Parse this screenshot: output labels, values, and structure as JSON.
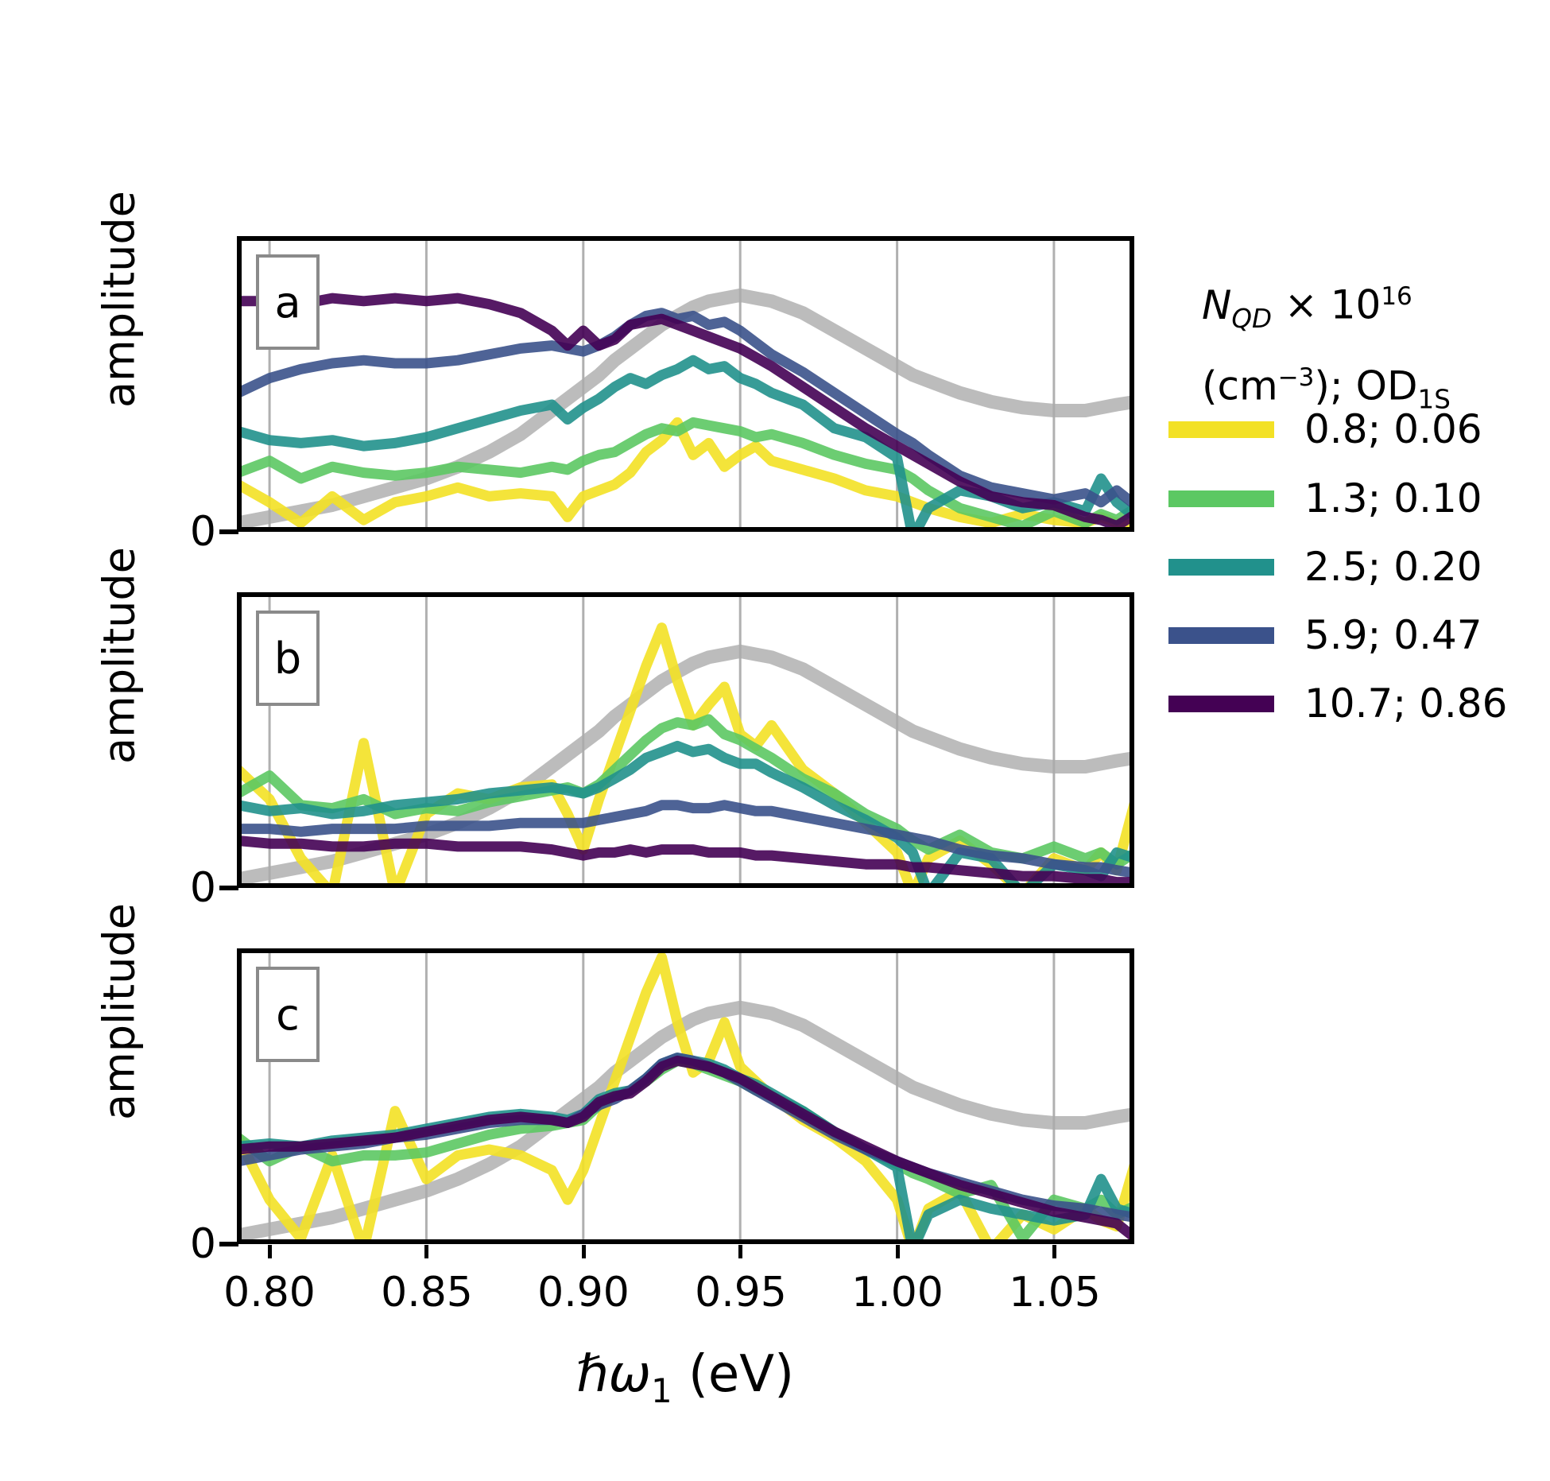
{
  "figure": {
    "ylabel": "amplitude",
    "zero_label": "0",
    "xlabel_html": "<i>&#8463;&#969;</i><sub>1</sub> (eV)",
    "panel_labels": [
      "a",
      "b",
      "c"
    ]
  },
  "legend": {
    "title_line1_html": "<i>N<sub>QD</sub></i> &#215; 10<sup>16</sup>",
    "title_line2_html": "(cm<sup>&#8722;3</sup>); OD<sub>1S</sub>",
    "entries": [
      {
        "label": "0.8; 0.06",
        "color": "#F3E125"
      },
      {
        "label": "1.3; 0.10",
        "color": "#5CC863"
      },
      {
        "label": "2.5; 0.20",
        "color": "#21918C"
      },
      {
        "label": "5.9; 0.47",
        "color": "#3B528B"
      },
      {
        "label": "10.7; 0.86",
        "color": "#440154"
      }
    ]
  },
  "chart_data": {
    "type": "line",
    "title": "",
    "xlabel": "ℏω₁ (eV)",
    "ylabel": "amplitude",
    "xlim": [
      0.7896,
      1.0756
    ],
    "ylim": [
      0,
      1
    ],
    "grid": true,
    "grid_color": "#B0B0B0",
    "legend_position": "right",
    "x_tick_values": [
      0.8,
      0.85,
      0.9,
      0.95,
      1.0,
      1.05
    ],
    "x_tick_labels": [
      "0.80",
      "0.85",
      "0.90",
      "0.95",
      "1.00",
      "1.05"
    ],
    "y_tick_labels": [
      "0"
    ],
    "x": [
      0.79,
      0.8,
      0.81,
      0.82,
      0.83,
      0.84,
      0.85,
      0.86,
      0.87,
      0.88,
      0.89,
      0.895,
      0.9,
      0.905,
      0.91,
      0.915,
      0.92,
      0.925,
      0.93,
      0.935,
      0.94,
      0.945,
      0.95,
      0.955,
      0.96,
      0.97,
      0.98,
      0.99,
      1.0,
      1.005,
      1.01,
      1.02,
      1.03,
      1.04,
      1.05,
      1.06,
      1.065,
      1.07,
      1.076
    ],
    "reference": {
      "name": "linear absorption reference",
      "color": "#ABABAB",
      "y": [
        0.03,
        0.05,
        0.07,
        0.09,
        0.12,
        0.15,
        0.18,
        0.22,
        0.27,
        0.33,
        0.41,
        0.45,
        0.49,
        0.53,
        0.58,
        0.62,
        0.66,
        0.7,
        0.73,
        0.76,
        0.78,
        0.79,
        0.8,
        0.79,
        0.78,
        0.74,
        0.68,
        0.62,
        0.56,
        0.53,
        0.51,
        0.47,
        0.44,
        0.42,
        0.41,
        0.41,
        0.42,
        0.43,
        0.44
      ]
    },
    "panels": [
      {
        "label": "a",
        "series": [
          {
            "name": "0.8; 0.06",
            "color": "#F3E125",
            "y": [
              0.16,
              0.1,
              0.03,
              0.12,
              0.04,
              0.1,
              0.12,
              0.15,
              0.12,
              0.13,
              0.12,
              0.05,
              0.12,
              0.14,
              0.16,
              0.2,
              0.27,
              0.31,
              0.37,
              0.26,
              0.3,
              0.22,
              0.26,
              0.29,
              0.24,
              0.21,
              0.18,
              0.14,
              0.12,
              0.1,
              0.08,
              0.05,
              0.03,
              0.06,
              0.04,
              0.03,
              0.05,
              0.03,
              0.02
            ]
          },
          {
            "name": "1.3; 0.10",
            "color": "#5CC863",
            "y": [
              0.2,
              0.24,
              0.18,
              0.22,
              0.2,
              0.19,
              0.2,
              0.22,
              0.21,
              0.2,
              0.22,
              0.21,
              0.24,
              0.26,
              0.27,
              0.3,
              0.33,
              0.35,
              0.34,
              0.37,
              0.36,
              0.35,
              0.34,
              0.32,
              0.33,
              0.3,
              0.26,
              0.23,
              0.21,
              0.18,
              0.14,
              0.08,
              0.05,
              0.02,
              0.07,
              0.03,
              0.06,
              0.04,
              0.08
            ]
          },
          {
            "name": "2.5; 0.20",
            "color": "#21918C",
            "y": [
              0.34,
              0.31,
              0.3,
              0.31,
              0.29,
              0.3,
              0.32,
              0.35,
              0.38,
              0.41,
              0.43,
              0.38,
              0.42,
              0.45,
              0.49,
              0.52,
              0.5,
              0.53,
              0.55,
              0.58,
              0.55,
              0.56,
              0.52,
              0.5,
              0.47,
              0.43,
              0.35,
              0.32,
              0.25,
              -0.02,
              0.08,
              0.14,
              0.12,
              0.08,
              0.1,
              0.07,
              0.18,
              0.1,
              0.05
            ]
          },
          {
            "name": "5.9; 0.47",
            "color": "#3B528B",
            "y": [
              0.47,
              0.52,
              0.55,
              0.57,
              0.58,
              0.57,
              0.57,
              0.58,
              0.6,
              0.62,
              0.63,
              0.62,
              0.61,
              0.63,
              0.66,
              0.7,
              0.73,
              0.74,
              0.72,
              0.73,
              0.7,
              0.71,
              0.68,
              0.64,
              0.6,
              0.54,
              0.47,
              0.4,
              0.33,
              0.3,
              0.26,
              0.19,
              0.15,
              0.13,
              0.11,
              0.13,
              0.1,
              0.14,
              0.09
            ]
          },
          {
            "name": "10.7; 0.86",
            "color": "#440154",
            "y": [
              0.78,
              0.78,
              0.77,
              0.79,
              0.78,
              0.79,
              0.78,
              0.79,
              0.77,
              0.74,
              0.68,
              0.63,
              0.68,
              0.63,
              0.65,
              0.7,
              0.71,
              0.72,
              0.7,
              0.68,
              0.66,
              0.64,
              0.62,
              0.59,
              0.56,
              0.49,
              0.42,
              0.35,
              0.29,
              0.26,
              0.23,
              0.17,
              0.12,
              0.1,
              0.09,
              0.05,
              0.04,
              0.02,
              0.06
            ]
          }
        ]
      },
      {
        "label": "b",
        "series": [
          {
            "name": "0.8; 0.06",
            "color": "#F3E125",
            "y": [
              0.4,
              0.3,
              0.1,
              -0.02,
              0.49,
              -0.02,
              0.25,
              0.32,
              0.3,
              0.34,
              0.35,
              0.25,
              0.13,
              0.3,
              0.45,
              0.6,
              0.75,
              0.88,
              0.7,
              0.55,
              0.62,
              0.68,
              0.52,
              0.48,
              0.55,
              0.4,
              0.32,
              0.22,
              0.12,
              -0.02,
              0.1,
              0.16,
              0.08,
              -0.02,
              0.1,
              0.06,
              0.12,
              0.06,
              0.3
            ]
          },
          {
            "name": "1.3; 0.10",
            "color": "#5CC863",
            "y": [
              0.32,
              0.38,
              0.28,
              0.27,
              0.3,
              0.25,
              0.27,
              0.26,
              0.29,
              0.31,
              0.33,
              0.34,
              0.32,
              0.35,
              0.4,
              0.45,
              0.5,
              0.54,
              0.56,
              0.55,
              0.57,
              0.52,
              0.5,
              0.47,
              0.44,
              0.37,
              0.32,
              0.25,
              0.2,
              0.16,
              0.13,
              0.18,
              0.12,
              0.1,
              0.14,
              0.1,
              0.12,
              0.08,
              0.12
            ]
          },
          {
            "name": "2.5; 0.20",
            "color": "#21918C",
            "y": [
              0.28,
              0.26,
              0.27,
              0.25,
              0.26,
              0.28,
              0.29,
              0.3,
              0.32,
              0.33,
              0.34,
              0.33,
              0.32,
              0.34,
              0.37,
              0.4,
              0.44,
              0.46,
              0.48,
              0.46,
              0.47,
              0.44,
              0.42,
              0.42,
              0.39,
              0.34,
              0.28,
              0.23,
              0.17,
              0.12,
              -0.02,
              0.12,
              0.1,
              -0.02,
              0.08,
              0.06,
              0.04,
              0.12,
              0.1
            ]
          },
          {
            "name": "5.9; 0.47",
            "color": "#3B528B",
            "y": [
              0.2,
              0.2,
              0.19,
              0.2,
              0.2,
              0.2,
              0.21,
              0.21,
              0.21,
              0.22,
              0.22,
              0.22,
              0.22,
              0.23,
              0.24,
              0.25,
              0.26,
              0.28,
              0.28,
              0.27,
              0.27,
              0.28,
              0.27,
              0.26,
              0.26,
              0.24,
              0.22,
              0.2,
              0.18,
              0.17,
              0.16,
              0.13,
              0.11,
              0.1,
              0.08,
              0.07,
              0.07,
              0.06,
              0.05
            ]
          },
          {
            "name": "10.7; 0.86",
            "color": "#440154",
            "y": [
              0.16,
              0.15,
              0.15,
              0.14,
              0.14,
              0.15,
              0.15,
              0.14,
              0.14,
              0.14,
              0.13,
              0.12,
              0.11,
              0.12,
              0.12,
              0.13,
              0.12,
              0.13,
              0.13,
              0.13,
              0.12,
              0.12,
              0.12,
              0.11,
              0.11,
              0.1,
              0.09,
              0.08,
              0.08,
              0.07,
              0.07,
              0.06,
              0.05,
              0.04,
              0.04,
              0.03,
              0.03,
              0.02,
              0.02
            ]
          }
        ]
      },
      {
        "label": "c",
        "series": [
          {
            "name": "0.8; 0.06",
            "color": "#F3E125",
            "y": [
              0.36,
              0.15,
              0.02,
              0.3,
              -0.02,
              0.45,
              0.22,
              0.3,
              0.32,
              0.3,
              0.25,
              0.15,
              0.25,
              0.4,
              0.55,
              0.7,
              0.85,
              0.97,
              0.75,
              0.58,
              0.62,
              0.75,
              0.6,
              0.55,
              0.5,
              0.42,
              0.36,
              0.28,
              0.15,
              -0.02,
              0.12,
              0.18,
              -0.02,
              0.1,
              0.05,
              0.12,
              0.08,
              0.06,
              0.28
            ]
          },
          {
            "name": "1.3; 0.10",
            "color": "#5CC863",
            "y": [
              0.36,
              0.28,
              0.33,
              0.28,
              0.3,
              0.3,
              0.31,
              0.34,
              0.37,
              0.39,
              0.4,
              0.41,
              0.42,
              0.47,
              0.5,
              0.52,
              0.55,
              0.59,
              0.62,
              0.61,
              0.59,
              0.57,
              0.55,
              0.52,
              0.5,
              0.45,
              0.38,
              0.32,
              0.27,
              0.24,
              0.22,
              0.17,
              0.2,
              0.02,
              0.15,
              0.12,
              0.15,
              0.1,
              0.13
            ]
          },
          {
            "name": "2.5; 0.20",
            "color": "#21918C",
            "y": [
              0.33,
              0.34,
              0.33,
              0.35,
              0.36,
              0.37,
              0.39,
              0.41,
              0.43,
              0.44,
              0.43,
              0.42,
              0.44,
              0.49,
              0.51,
              0.52,
              0.56,
              0.61,
              0.63,
              0.62,
              0.61,
              0.59,
              0.56,
              0.54,
              0.51,
              0.45,
              0.38,
              0.32,
              0.26,
              -0.02,
              0.1,
              0.15,
              0.12,
              0.1,
              0.08,
              0.1,
              0.22,
              0.12,
              0.1
            ]
          },
          {
            "name": "5.9; 0.47",
            "color": "#3B528B",
            "y": [
              0.28,
              0.3,
              0.32,
              0.33,
              0.34,
              0.36,
              0.37,
              0.39,
              0.41,
              0.42,
              0.42,
              0.41,
              0.44,
              0.47,
              0.49,
              0.52,
              0.56,
              0.61,
              0.63,
              0.62,
              0.6,
              0.58,
              0.55,
              0.52,
              0.49,
              0.43,
              0.37,
              0.32,
              0.28,
              0.26,
              0.24,
              0.21,
              0.18,
              0.15,
              0.13,
              0.12,
              0.11,
              0.1,
              0.09
            ]
          },
          {
            "name": "10.7; 0.86",
            "color": "#440154",
            "y": [
              0.32,
              0.33,
              0.33,
              0.34,
              0.35,
              0.36,
              0.38,
              0.4,
              0.42,
              0.43,
              0.42,
              0.41,
              0.43,
              0.48,
              0.5,
              0.51,
              0.55,
              0.6,
              0.62,
              0.61,
              0.6,
              0.58,
              0.56,
              0.53,
              0.5,
              0.44,
              0.38,
              0.33,
              0.28,
              0.26,
              0.24,
              0.2,
              0.17,
              0.14,
              0.11,
              0.09,
              0.08,
              0.07,
              0.02
            ]
          }
        ]
      }
    ]
  }
}
